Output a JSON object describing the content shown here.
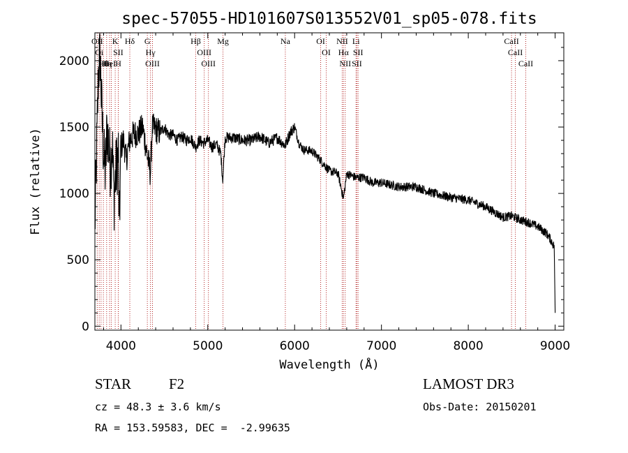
{
  "chart_data": {
    "type": "line",
    "title": "spec-57055-HD101607S013552V01_sp05-078.fits",
    "xlabel": "Wavelength (Å)",
    "ylabel": "Flux (relative)",
    "xlim": [
      3700,
      9100
    ],
    "ylim": [
      -30,
      2210
    ],
    "xticks": [
      4000,
      5000,
      6000,
      7000,
      8000,
      9000
    ],
    "yticks": [
      0,
      500,
      1000,
      1500,
      2000
    ],
    "series": [
      {
        "name": "flux",
        "x": [
          3700,
          3720,
          3740,
          3760,
          3780,
          3800,
          3820,
          3840,
          3860,
          3880,
          3900,
          3920,
          3940,
          3960,
          3970,
          3980,
          4000,
          4030,
          4060,
          4100,
          4150,
          4200,
          4250,
          4300,
          4340,
          4360,
          4400,
          4450,
          4500,
          4550,
          4600,
          4650,
          4700,
          4750,
          4800,
          4861,
          4900,
          4950,
          5000,
          5050,
          5100,
          5150,
          5172,
          5200,
          5300,
          5400,
          5500,
          5600,
          5700,
          5800,
          5890,
          5950,
          6000,
          6050,
          6100,
          6200,
          6300,
          6400,
          6500,
          6563,
          6600,
          6700,
          6800,
          6900,
          7000,
          7200,
          7400,
          7600,
          7800,
          8000,
          8200,
          8400,
          8500,
          8600,
          8700,
          8800,
          8900,
          8950,
          8990,
          9000
        ],
        "y": [
          750,
          1300,
          1900,
          2050,
          1600,
          1300,
          1150,
          1500,
          1350,
          1200,
          1400,
          950,
          1150,
          1250,
          1300,
          700,
          1350,
          1400,
          1250,
          1400,
          1450,
          1450,
          1500,
          1300,
          1150,
          1500,
          1480,
          1460,
          1500,
          1440,
          1440,
          1400,
          1430,
          1400,
          1420,
          1350,
          1400,
          1380,
          1400,
          1350,
          1370,
          1300,
          1100,
          1420,
          1420,
          1400,
          1400,
          1430,
          1380,
          1420,
          1360,
          1460,
          1500,
          1380,
          1330,
          1320,
          1250,
          1170,
          1150,
          960,
          1150,
          1120,
          1120,
          1080,
          1080,
          1050,
          1050,
          1000,
          970,
          950,
          900,
          820,
          830,
          800,
          780,
          750,
          700,
          650,
          600,
          100
        ]
      }
    ],
    "lines": [
      {
        "wl": 3727,
        "labels": [
          "OII"
        ]
      },
      {
        "wl": 3750,
        "labels": [
          "Oi"
        ]
      },
      {
        "wl": 3771,
        "labels": [
          ""
        ]
      },
      {
        "wl": 3798,
        "labels": [
          "Hθ"
        ]
      },
      {
        "wl": 3835,
        "labels": [
          "Hη"
        ]
      },
      {
        "wl": 3869,
        "labels": [
          "HeI"
        ]
      },
      {
        "wl": 3889,
        "labels": [
          ""
        ]
      },
      {
        "wl": 3934,
        "labels": [
          "K"
        ]
      },
      {
        "wl": 3969,
        "labels": [
          "SII"
        ]
      },
      {
        "wl": 3970,
        "labels": [
          "H"
        ]
      },
      {
        "wl": 4102,
        "labels": [
          "Hδ"
        ]
      },
      {
        "wl": 4304,
        "labels": [
          "G"
        ]
      },
      {
        "wl": 4340,
        "labels": [
          "Hγ"
        ]
      },
      {
        "wl": 4363,
        "labels": [
          "OIII"
        ]
      },
      {
        "wl": 4861,
        "labels": [
          "Hβ"
        ]
      },
      {
        "wl": 4959,
        "labels": [
          "OIII"
        ]
      },
      {
        "wl": 5007,
        "labels": [
          "OIII"
        ]
      },
      {
        "wl": 5175,
        "labels": [
          "Mg"
        ]
      },
      {
        "wl": 5893,
        "labels": [
          "Na"
        ]
      },
      {
        "wl": 6300,
        "labels": [
          "OI"
        ]
      },
      {
        "wl": 6364,
        "labels": [
          "OI"
        ]
      },
      {
        "wl": 6548,
        "labels": [
          "NII"
        ]
      },
      {
        "wl": 6563,
        "labels": [
          "Hα"
        ]
      },
      {
        "wl": 6583,
        "labels": [
          "NII"
        ]
      },
      {
        "wl": 6707,
        "labels": [
          "Li"
        ]
      },
      {
        "wl": 6717,
        "labels": [
          "SII"
        ]
      },
      {
        "wl": 6731,
        "labels": [
          "SII"
        ]
      },
      {
        "wl": 8498,
        "labels": [
          "CaII"
        ]
      },
      {
        "wl": 8542,
        "labels": [
          "CaII"
        ]
      },
      {
        "wl": 8662,
        "labels": [
          "CaII"
        ]
      }
    ]
  },
  "info": {
    "class": "STAR",
    "subclass": "F2",
    "cz": "cz = 48.3 ± 3.6 km/s",
    "radec": "RA = 153.59583, DEC =  -2.99635",
    "survey": "LAMOST DR3",
    "obsdate": "Obs-Date: 20150201"
  },
  "colors": {
    "line_marker": "#b22222",
    "spectrum": "#000000"
  }
}
